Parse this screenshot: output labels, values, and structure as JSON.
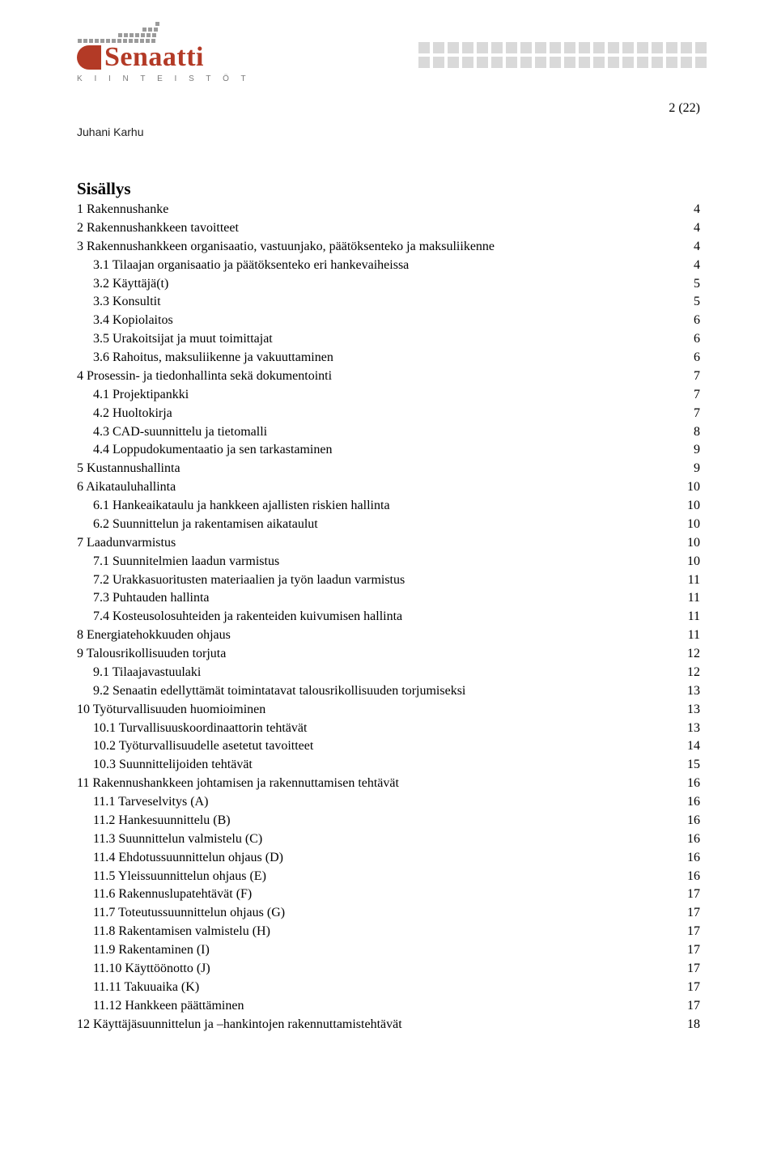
{
  "logo": {
    "name": "Senaatti",
    "sub": "K I I N T E I S T Ö T",
    "brand_color": "#b33a26",
    "square_color": "#9b9b9b",
    "dot_color": "#d9d9d9"
  },
  "author": "Juhani Karhu",
  "page_counter": "2 (22)",
  "toc_title": "Sisällys",
  "toc": [
    {
      "level": 1,
      "label": "1 Rakennushanke",
      "page": "4"
    },
    {
      "level": 1,
      "label": "2 Rakennushankkeen tavoitteet",
      "page": "4"
    },
    {
      "level": 1,
      "label": "3 Rakennushankkeen organisaatio, vastuunjako, päätöksenteko ja maksuliikenne",
      "page": "4"
    },
    {
      "level": 2,
      "label": "3.1 Tilaajan organisaatio ja päätöksenteko eri hankevaiheissa",
      "page": "4"
    },
    {
      "level": 2,
      "label": "3.2 Käyttäjä(t)",
      "page": "5"
    },
    {
      "level": 2,
      "label": "3.3 Konsultit",
      "page": "5"
    },
    {
      "level": 2,
      "label": "3.4 Kopiolaitos",
      "page": "6"
    },
    {
      "level": 2,
      "label": "3.5 Urakoitsijat ja muut toimittajat",
      "page": "6"
    },
    {
      "level": 2,
      "label": "3.6 Rahoitus, maksuliikenne ja vakuuttaminen",
      "page": "6"
    },
    {
      "level": 1,
      "label": "4 Prosessin- ja tiedonhallinta sekä dokumentointi",
      "page": "7"
    },
    {
      "level": 2,
      "label": "4.1 Projektipankki",
      "page": "7"
    },
    {
      "level": 2,
      "label": "4.2 Huoltokirja",
      "page": "7"
    },
    {
      "level": 2,
      "label": "4.3 CAD-suunnittelu ja tietomalli",
      "page": "8"
    },
    {
      "level": 2,
      "label": "4.4 Loppudokumentaatio ja sen tarkastaminen",
      "page": "9"
    },
    {
      "level": 1,
      "label": "5 Kustannushallinta",
      "page": "9"
    },
    {
      "level": 1,
      "label": "6 Aikatauluhallinta",
      "page": "10"
    },
    {
      "level": 2,
      "label": "6.1 Hankeaikataulu ja hankkeen ajallisten riskien hallinta",
      "page": "10"
    },
    {
      "level": 2,
      "label": "6.2 Suunnittelun ja rakentamisen aikataulut",
      "page": "10"
    },
    {
      "level": 1,
      "label": "7 Laadunvarmistus",
      "page": "10"
    },
    {
      "level": 2,
      "label": "7.1 Suunnitelmien laadun varmistus",
      "page": "10"
    },
    {
      "level": 2,
      "label": "7.2 Urakkasuoritusten materiaalien ja työn laadun varmistus",
      "page": "11"
    },
    {
      "level": 2,
      "label": "7.3 Puhtauden hallinta",
      "page": "11"
    },
    {
      "level": 2,
      "label": "7.4 Kosteusolosuhteiden ja rakenteiden kuivumisen hallinta",
      "page": "11"
    },
    {
      "level": 1,
      "label": "8 Energiatehokkuuden ohjaus",
      "page": "11"
    },
    {
      "level": 1,
      "label": "9 Talousrikollisuuden torjuta",
      "page": "12"
    },
    {
      "level": 2,
      "label": "9.1 Tilaajavastuulaki",
      "page": "12"
    },
    {
      "level": 2,
      "label": "9.2 Senaatin edellyttämät toimintatavat talousrikollisuuden torjumiseksi",
      "page": "13"
    },
    {
      "level": 1,
      "label": "10 Työturvallisuuden huomioiminen",
      "page": "13"
    },
    {
      "level": 2,
      "label": "10.1 Turvallisuuskoordinaattorin tehtävät",
      "page": "13"
    },
    {
      "level": 2,
      "label": "10.2 Työturvallisuudelle asetetut tavoitteet",
      "page": "14"
    },
    {
      "level": 2,
      "label": "10.3 Suunnittelijoiden tehtävät",
      "page": "15"
    },
    {
      "level": 1,
      "label": "11 Rakennushankkeen johtamisen ja rakennuttamisen tehtävät",
      "page": "16"
    },
    {
      "level": 2,
      "label": "11.1 Tarveselvitys (A)",
      "page": "16"
    },
    {
      "level": 2,
      "label": "11.2 Hankesuunnittelu (B)",
      "page": "16"
    },
    {
      "level": 2,
      "label": "11.3 Suunnittelun valmistelu (C)",
      "page": "16"
    },
    {
      "level": 2,
      "label": "11.4 Ehdotussuunnittelun ohjaus (D)",
      "page": "16"
    },
    {
      "level": 2,
      "label": "11.5 Yleissuunnittelun ohjaus (E)",
      "page": "16"
    },
    {
      "level": 2,
      "label": "11.6 Rakennuslupatehtävät (F)",
      "page": "17"
    },
    {
      "level": 2,
      "label": "11.7 Toteutussuunnittelun ohjaus (G)",
      "page": "17"
    },
    {
      "level": 2,
      "label": "11.8 Rakentamisen valmistelu (H)",
      "page": "17"
    },
    {
      "level": 2,
      "label": "11.9 Rakentaminen (I)",
      "page": "17"
    },
    {
      "level": 2,
      "label": "11.10 Käyttöönotto (J)",
      "page": "17"
    },
    {
      "level": 2,
      "label": "11.11 Takuuaika (K)",
      "page": "17"
    },
    {
      "level": 2,
      "label": "11.12 Hankkeen päättäminen",
      "page": "17"
    },
    {
      "level": 1,
      "label": "12 Käyttäjäsuunnittelun ja –hankintojen rakennuttamistehtävät",
      "page": "18"
    }
  ]
}
